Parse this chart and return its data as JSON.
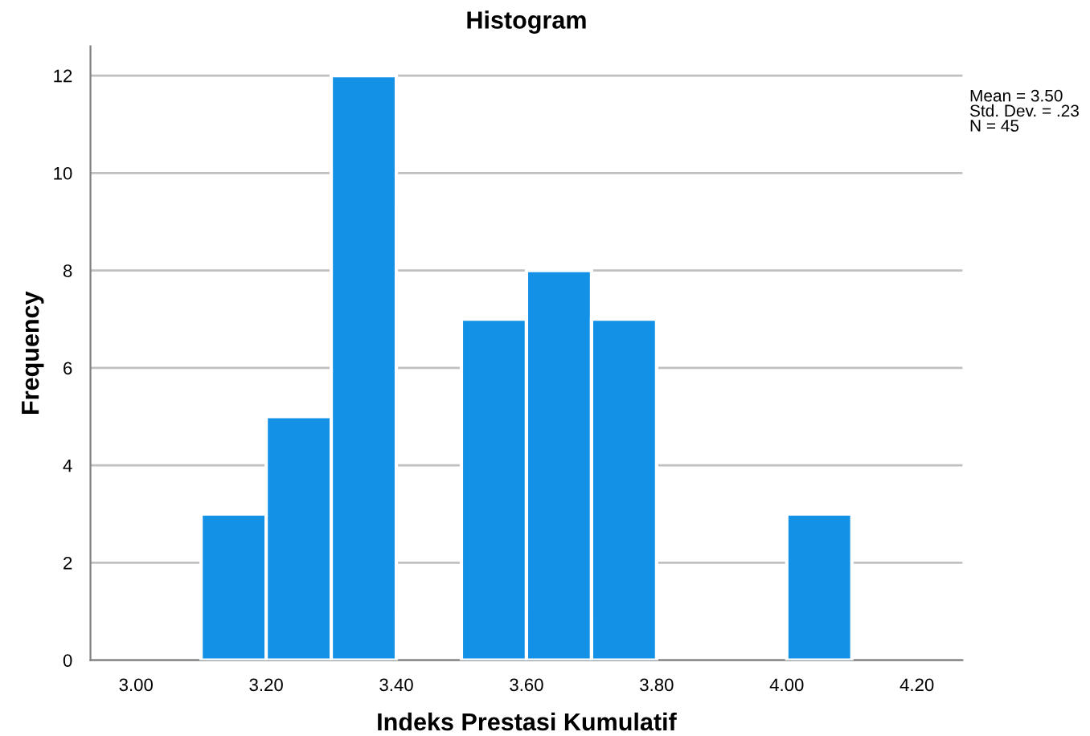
{
  "chart_data": {
    "type": "histogram",
    "title": "Histogram",
    "xlabel": "Indeks Prestasi Kumulatif",
    "ylabel": "Frequency",
    "bins": [
      3.1,
      3.2,
      3.3,
      3.4,
      3.5,
      3.6,
      3.7,
      3.8,
      3.9,
      4.0,
      4.1
    ],
    "values": [
      3,
      5,
      12,
      0,
      7,
      8,
      7,
      0,
      0,
      3
    ],
    "color": "#1391e6",
    "xlim": [
      2.93,
      4.27
    ],
    "xticks": [
      {
        "value": 3.0,
        "label": "3.00"
      },
      {
        "value": 3.2,
        "label": "3.20"
      },
      {
        "value": 3.4,
        "label": "3.40"
      },
      {
        "value": 3.6,
        "label": "3.60"
      },
      {
        "value": 3.8,
        "label": "3.80"
      },
      {
        "value": 4.0,
        "label": "4.00"
      },
      {
        "value": 4.2,
        "label": "4.20"
      }
    ],
    "ylim": [
      0,
      12.6
    ],
    "yticks": [
      0,
      2,
      4,
      6,
      8,
      10,
      12
    ],
    "grid": "y",
    "annotations": [
      "Mean = 3.50\nStd. Dev. = .23\nN = 45"
    ]
  }
}
